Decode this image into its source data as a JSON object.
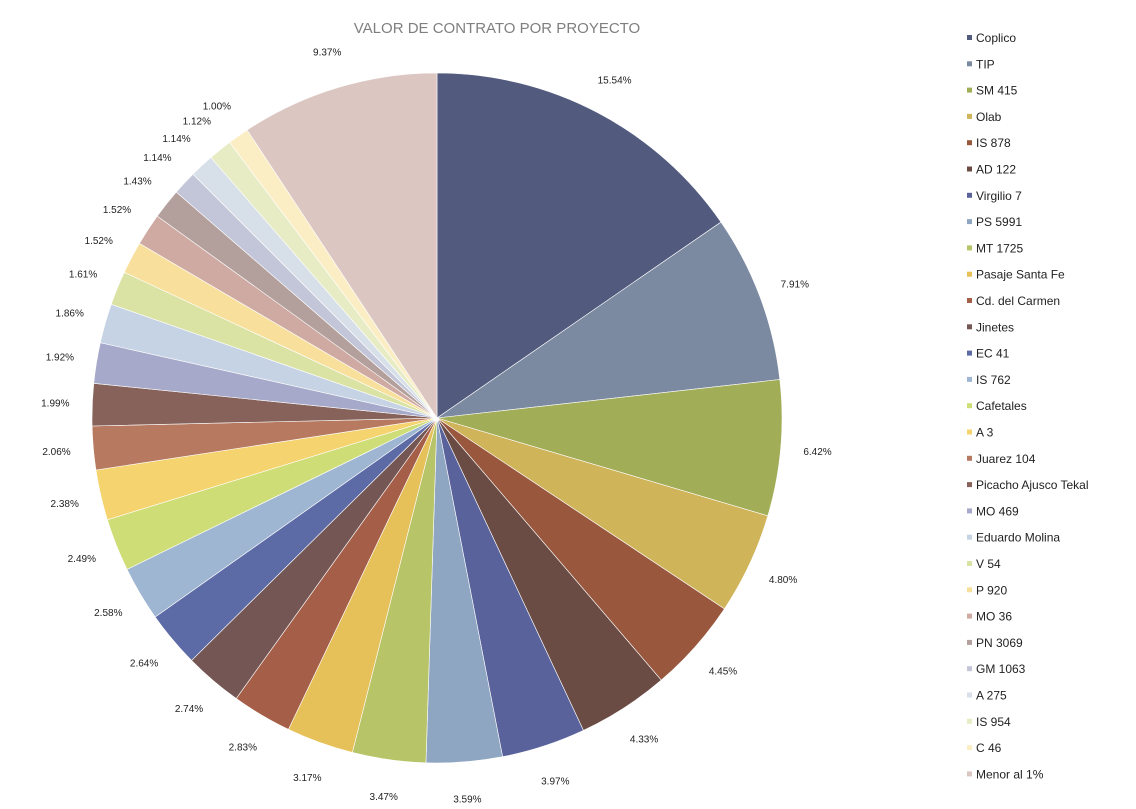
{
  "chart_data": {
    "type": "pie",
    "title": "VALOR DE CONTRATO POR PROYECTO",
    "legend_position": "right",
    "slices": [
      {
        "label": "Coplico",
        "value": 15.54,
        "display": "15.54%",
        "color": "#525b7e"
      },
      {
        "label": "TIP",
        "value": 7.91,
        "display": "7.91%",
        "color": "#7c8aa1"
      },
      {
        "label": "SM 415",
        "value": 6.42,
        "display": "6.42%",
        "color": "#a2ad58"
      },
      {
        "label": "Olab",
        "value": 4.8,
        "display": "4.80%",
        "color": "#d0b459"
      },
      {
        "label": "IS 878",
        "value": 4.45,
        "display": "4.45%",
        "color": "#99583e"
      },
      {
        "label": "AD 122",
        "value": 4.33,
        "display": "4.33%",
        "color": "#6b4c45"
      },
      {
        "label": "Virgilio 7",
        "value": 3.97,
        "display": "3.97%",
        "color": "#59629a"
      },
      {
        "label": "PS 5991",
        "value": 3.59,
        "display": "3.59%",
        "color": "#8fa6c2"
      },
      {
        "label": "MT 1725",
        "value": 3.47,
        "display": "3.47%",
        "color": "#b7c467"
      },
      {
        "label": "Pasaje Santa Fe",
        "value": 3.17,
        "display": "3.17%",
        "color": "#e6c058"
      },
      {
        "label": "Cd. del Carmen",
        "value": 2.83,
        "display": "2.83%",
        "color": "#a55f49"
      },
      {
        "label": "Jinetes",
        "value": 2.74,
        "display": "2.74%",
        "color": "#745754"
      },
      {
        "label": "EC 41",
        "value": 2.64,
        "display": "2.64%",
        "color": "#5c6aa6"
      },
      {
        "label": "IS 762",
        "value": 2.58,
        "display": "2.58%",
        "color": "#9fb6d3"
      },
      {
        "label": "Cafetales",
        "value": 2.49,
        "display": "2.49%",
        "color": "#cfdd77"
      },
      {
        "label": "A 3",
        "value": 2.38,
        "display": "2.38%",
        "color": "#f5d36e"
      },
      {
        "label": "Juarez 104",
        "value": 2.06,
        "display": "2.06%",
        "color": "#b77a60"
      },
      {
        "label": "Picacho Ajusco Tekal",
        "value": 1.99,
        "display": "1.99%",
        "color": "#86625b"
      },
      {
        "label": "MO 469",
        "value": 1.92,
        "display": "1.92%",
        "color": "#a6a9c9"
      },
      {
        "label": "Eduardo Molina",
        "value": 1.86,
        "display": "1.86%",
        "color": "#c6d3e5"
      },
      {
        "label": "V 54",
        "value": 1.61,
        "display": "1.61%",
        "color": "#dbe3a4"
      },
      {
        "label": "P 920",
        "value": 1.52,
        "display": "1.52%",
        "color": "#f8e09c"
      },
      {
        "label": "MO 36",
        "value": 1.52,
        "display": "1.52%",
        "color": "#cfaaa3"
      },
      {
        "label": "PN 3069",
        "value": 1.43,
        "display": "1.43%",
        "color": "#b3a09d"
      },
      {
        "label": "GM 1063",
        "value": 1.14,
        "display": "1.14%",
        "color": "#c3c6d8"
      },
      {
        "label": "A 275",
        "value": 1.14,
        "display": "1.14%",
        "color": "#d7dfe9"
      },
      {
        "label": "IS 954",
        "value": 1.12,
        "display": "1.12%",
        "color": "#e7ecc4"
      },
      {
        "label": "C 46",
        "value": 1.0,
        "display": "1.00%",
        "color": "#fbeec4"
      },
      {
        "label": "Menor al 1%",
        "value": 9.37,
        "display": "9.37%",
        "color": "#dcc6c2"
      }
    ]
  }
}
